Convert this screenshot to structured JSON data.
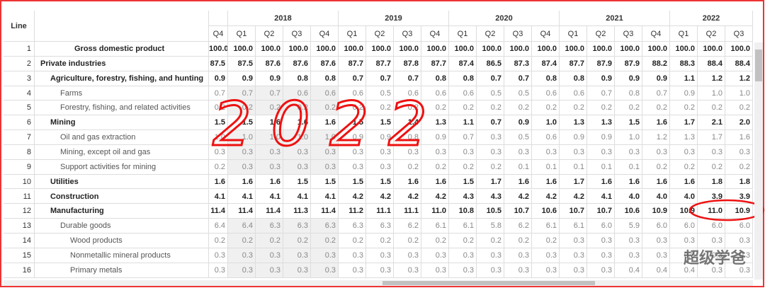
{
  "header": {
    "line_label": "Line",
    "years": [
      "2018",
      "2019",
      "2020",
      "2021",
      "2022"
    ],
    "quarters": [
      "Q4",
      "Q1",
      "Q2",
      "Q3",
      "Q4",
      "Q1",
      "Q2",
      "Q3",
      "Q4",
      "Q1",
      "Q2",
      "Q3",
      "Q4",
      "Q1",
      "Q2",
      "Q3",
      "Q4",
      "Q1",
      "Q2",
      "Q3"
    ]
  },
  "rows": [
    {
      "line": "1",
      "label": "Gross domestic product",
      "values": [
        "100.0",
        "100.0",
        "100.0",
        "100.0",
        "100.0",
        "100.0",
        "100.0",
        "100.0",
        "100.0",
        "100.0",
        "100.0",
        "100.0",
        "100.0",
        "100.0",
        "100.0",
        "100.0",
        "100.0",
        "100.0",
        "100.0",
        "100.0"
      ]
    },
    {
      "line": "2",
      "label": "Private industries",
      "values": [
        "87.5",
        "87.5",
        "87.6",
        "87.6",
        "87.6",
        "87.7",
        "87.7",
        "87.8",
        "87.7",
        "87.4",
        "86.5",
        "87.3",
        "87.4",
        "87.7",
        "87.9",
        "87.9",
        "88.2",
        "88.3",
        "88.4",
        "88.4"
      ]
    },
    {
      "line": "3",
      "label": "Agriculture, forestry, fishing, and hunting",
      "values": [
        "0.9",
        "0.9",
        "0.9",
        "0.8",
        "0.8",
        "0.7",
        "0.7",
        "0.7",
        "0.8",
        "0.8",
        "0.7",
        "0.7",
        "0.8",
        "0.8",
        "0.9",
        "0.9",
        "0.9",
        "1.1",
        "1.2",
        "1.2"
      ]
    },
    {
      "line": "4",
      "label": "Farms",
      "values": [
        "0.7",
        "0.7",
        "0.7",
        "0.6",
        "0.6",
        "0.6",
        "0.5",
        "0.6",
        "0.6",
        "0.6",
        "0.5",
        "0.5",
        "0.6",
        "0.6",
        "0.7",
        "0.8",
        "0.7",
        "0.9",
        "1.0",
        "1.0"
      ]
    },
    {
      "line": "5",
      "label": "Forestry, fishing, and related activities",
      "values": [
        "0.2",
        "0.2",
        "0.2",
        "0.2",
        "0.2",
        "0.2",
        "0.2",
        "0.2",
        "0.2",
        "0.2",
        "0.2",
        "0.2",
        "0.2",
        "0.2",
        "0.2",
        "0.2",
        "0.2",
        "0.2",
        "0.2",
        "0.2"
      ]
    },
    {
      "line": "6",
      "label": "Mining",
      "values": [
        "1.5",
        "1.5",
        "1.6",
        "1.6",
        "1.6",
        "1.5",
        "1.5",
        "1.4",
        "1.3",
        "1.1",
        "0.7",
        "0.9",
        "1.0",
        "1.3",
        "1.3",
        "1.5",
        "1.6",
        "1.7",
        "2.1",
        "2.0"
      ]
    },
    {
      "line": "7",
      "label": "Oil and gas extraction",
      "values": [
        "1.0",
        "1.0",
        "1.0",
        "1.0",
        "1.0",
        "0.9",
        "0.9",
        "0.8",
        "0.9",
        "0.7",
        "0.3",
        "0.5",
        "0.6",
        "0.9",
        "0.9",
        "1.0",
        "1.2",
        "1.3",
        "1.7",
        "1.6"
      ]
    },
    {
      "line": "8",
      "label": "Mining, except oil and gas",
      "values": [
        "0.3",
        "0.3",
        "0.3",
        "0.3",
        "0.3",
        "0.3",
        "0.3",
        "0.3",
        "0.3",
        "0.3",
        "0.3",
        "0.3",
        "0.3",
        "0.3",
        "0.3",
        "0.3",
        "0.3",
        "0.3",
        "0.3",
        "0.3"
      ]
    },
    {
      "line": "9",
      "label": "Support activities for mining",
      "values": [
        "0.2",
        "0.3",
        "0.3",
        "0.3",
        "0.3",
        "0.3",
        "0.3",
        "0.2",
        "0.2",
        "0.2",
        "0.2",
        "0.1",
        "0.1",
        "0.1",
        "0.1",
        "0.1",
        "0.2",
        "0.2",
        "0.2",
        "0.2"
      ]
    },
    {
      "line": "10",
      "label": "Utilities",
      "values": [
        "1.6",
        "1.6",
        "1.6",
        "1.5",
        "1.5",
        "1.5",
        "1.5",
        "1.6",
        "1.6",
        "1.5",
        "1.7",
        "1.6",
        "1.6",
        "1.7",
        "1.6",
        "1.6",
        "1.6",
        "1.6",
        "1.8",
        "1.8"
      ]
    },
    {
      "line": "11",
      "label": "Construction",
      "values": [
        "4.1",
        "4.1",
        "4.1",
        "4.1",
        "4.1",
        "4.2",
        "4.2",
        "4.2",
        "4.2",
        "4.3",
        "4.3",
        "4.2",
        "4.2",
        "4.2",
        "4.1",
        "4.0",
        "4.0",
        "4.0",
        "3.9",
        "3.9"
      ]
    },
    {
      "line": "12",
      "label": "Manufacturing",
      "values": [
        "11.4",
        "11.4",
        "11.4",
        "11.3",
        "11.4",
        "11.2",
        "11.1",
        "11.1",
        "11.0",
        "10.8",
        "10.5",
        "10.7",
        "10.6",
        "10.7",
        "10.7",
        "10.6",
        "10.9",
        "10.9",
        "11.0",
        "10.9"
      ]
    },
    {
      "line": "13",
      "label": "Durable goods",
      "values": [
        "6.4",
        "6.4",
        "6.3",
        "6.3",
        "6.3",
        "6.3",
        "6.3",
        "6.2",
        "6.1",
        "6.1",
        "5.8",
        "6.2",
        "6.1",
        "6.1",
        "6.0",
        "5.9",
        "6.0",
        "6.0",
        "6.0",
        "6.0"
      ]
    },
    {
      "line": "14",
      "label": "Wood products",
      "values": [
        "0.2",
        "0.2",
        "0.2",
        "0.2",
        "0.2",
        "0.2",
        "0.2",
        "0.2",
        "0.2",
        "0.2",
        "0.2",
        "0.2",
        "0.2",
        "0.3",
        "0.3",
        "0.3",
        "0.3",
        "0.3",
        "0.3",
        "0.3"
      ]
    },
    {
      "line": "15",
      "label": "Nonmetallic mineral products",
      "values": [
        "0.3",
        "0.3",
        "0.3",
        "0.3",
        "0.3",
        "0.3",
        "0.3",
        "0.3",
        "0.3",
        "0.3",
        "0.3",
        "0.3",
        "0.3",
        "0.3",
        "0.3",
        "0.3",
        "0.3",
        "0.3",
        "0.3",
        "0.3"
      ]
    },
    {
      "line": "16",
      "label": "Primary metals",
      "values": [
        "0.3",
        "0.3",
        "0.3",
        "0.3",
        "0.3",
        "0.3",
        "0.3",
        "0.3",
        "0.3",
        "0.3",
        "0.3",
        "0.3",
        "0.3",
        "0.3",
        "0.3",
        "0.4",
        "0.4",
        "0.4",
        "0.3",
        "0.3"
      ]
    }
  ],
  "annotation": "2022",
  "watermark": "超级学爸"
}
